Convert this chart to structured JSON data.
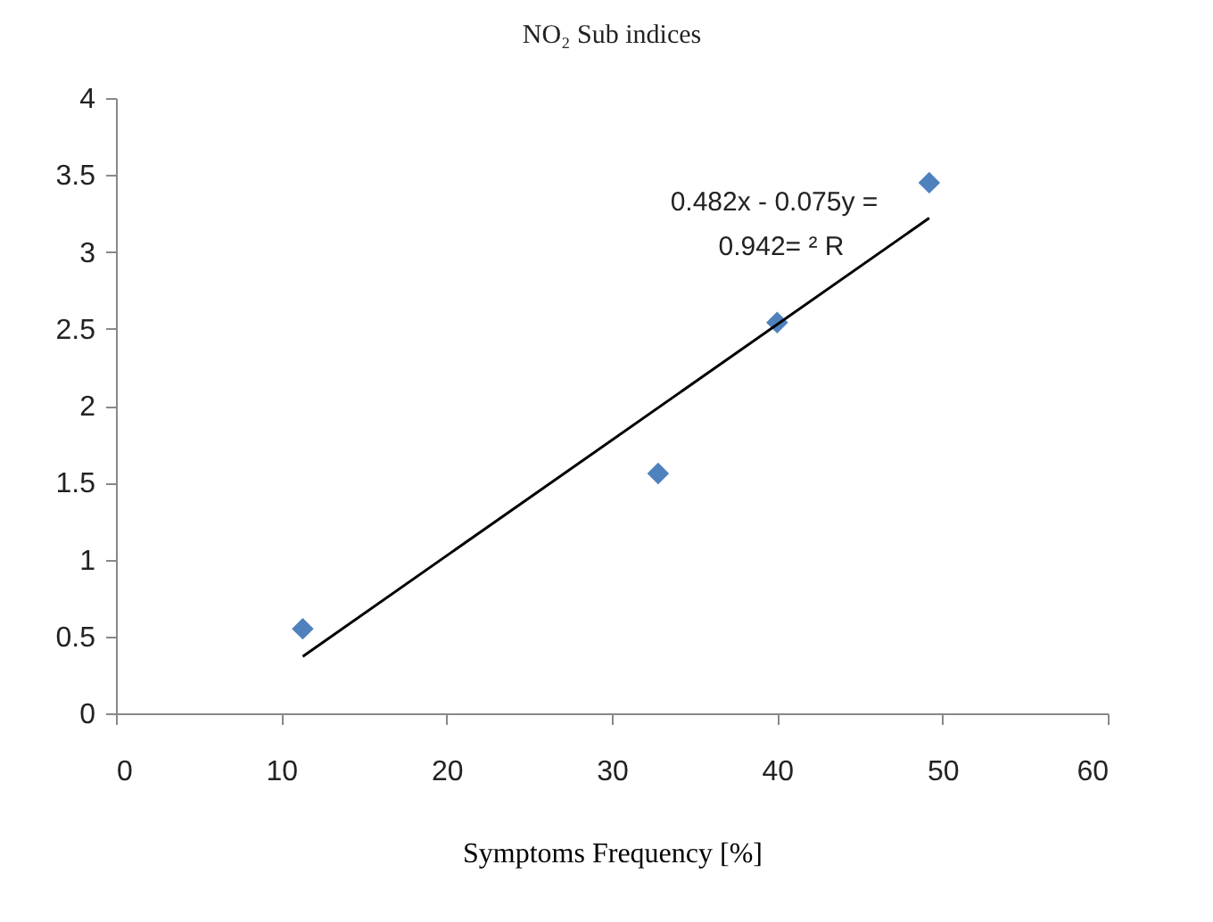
{
  "chart_data": {
    "type": "scatter",
    "title": "NO₂ Sub indices",
    "xlabel": "Symptoms Frequency [%]",
    "xlim": [
      0,
      60
    ],
    "xticks": [
      0,
      10,
      20,
      30,
      40,
      50,
      60
    ],
    "ylim": [
      0,
      4
    ],
    "yticks": [
      0,
      0.5,
      1,
      1.5,
      2,
      2.5,
      3,
      3.5,
      4
    ],
    "grid": false,
    "marker": "diamond",
    "series": [
      {
        "color": "#4f81bd",
        "x": [
          11.3,
          32.8,
          40,
          49.2
        ],
        "values": [
          0.55,
          1.56,
          2.54,
          3.45
        ]
      },
      {
        "type": "line",
        "color": "#000000",
        "marker": "none",
        "x": [
          11.3,
          49.2
        ],
        "values": [
          0.37,
          3.22
        ]
      }
    ],
    "annotations": [
      "0.482x - 0.075y =",
      "0.942= ² R"
    ]
  }
}
